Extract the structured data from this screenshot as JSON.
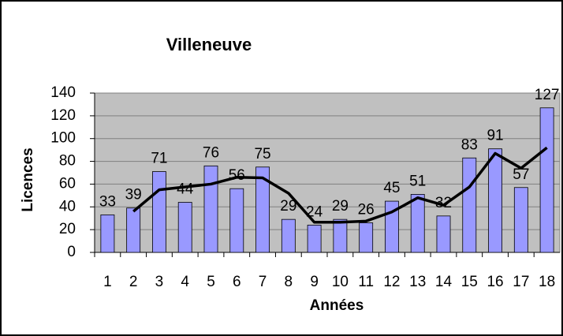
{
  "chart_data": {
    "type": "bar",
    "title": "Villeneuve",
    "x_label": "Années",
    "y_label": "Licences",
    "categories": [
      "1",
      "2",
      "3",
      "4",
      "5",
      "6",
      "7",
      "8",
      "9",
      "10",
      "11",
      "12",
      "13",
      "14",
      "15",
      "16",
      "17",
      "18"
    ],
    "series": [
      {
        "type": "bar",
        "color": "#9999ff",
        "values": [
          33,
          39,
          71,
          44,
          76,
          56,
          75,
          29,
          24,
          29,
          26,
          45,
          51,
          32,
          83,
          91,
          57,
          127
        ]
      },
      {
        "type": "line",
        "color": "#000000",
        "values": [
          null,
          36,
          55,
          57.5,
          60,
          66,
          65.5,
          52,
          26.5,
          26.5,
          27.5,
          35.5,
          48,
          41.5,
          57.5,
          87,
          74,
          92
        ]
      }
    ],
    "ylim": [
      0,
      140
    ],
    "yticks": [
      0,
      20,
      40,
      60,
      80,
      100,
      120,
      140
    ],
    "grid": true
  }
}
